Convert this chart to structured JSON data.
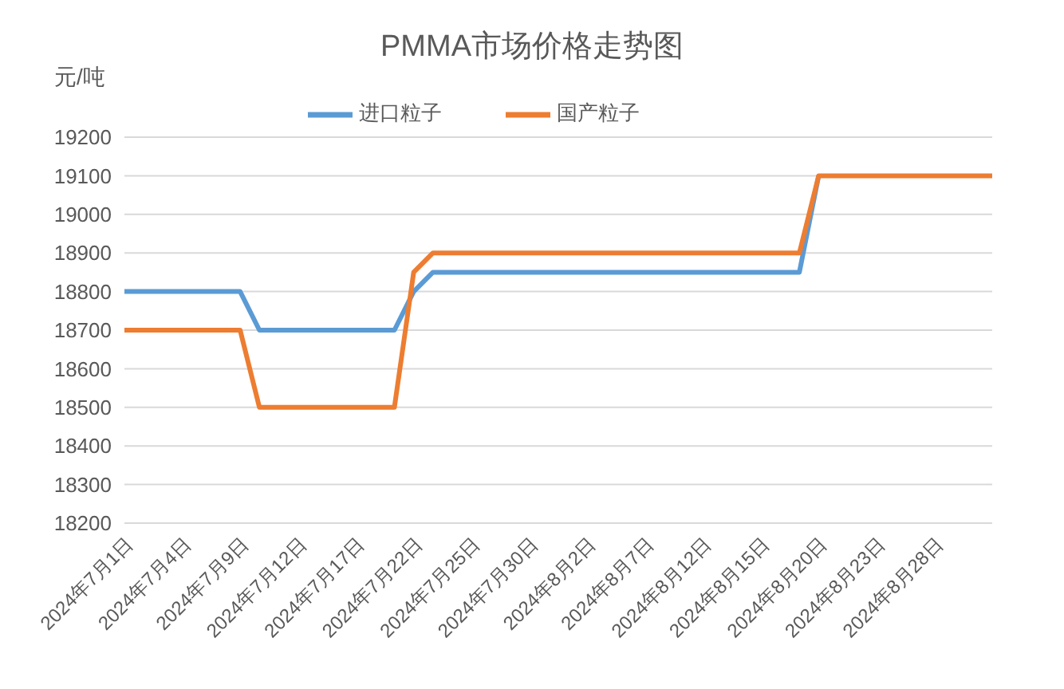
{
  "chart_data": {
    "type": "line",
    "title": "PMMA市场价格走势图",
    "ylabel": "元/吨",
    "categories": [
      "2024年7月1日",
      null,
      null,
      "2024年7月4日",
      null,
      null,
      "2024年7月9日",
      null,
      null,
      "2024年7月12日",
      null,
      null,
      "2024年7月17日",
      null,
      null,
      "2024年7月22日",
      null,
      null,
      "2024年7月25日",
      null,
      null,
      "2024年7月30日",
      null,
      null,
      "2024年8月2日",
      null,
      null,
      "2024年8月7日",
      null,
      null,
      "2024年8月12日",
      null,
      null,
      "2024年8月15日",
      null,
      null,
      "2024年8月20日",
      null,
      null,
      "2024年8月23日",
      null,
      null,
      "2024年8月28日",
      null,
      null,
      null
    ],
    "series": [
      {
        "name": "进口粒子",
        "color": "#5b9bd5",
        "values": [
          18800,
          18800,
          18800,
          18800,
          18800,
          18800,
          18800,
          18700,
          18700,
          18700,
          18700,
          18700,
          18700,
          18700,
          18700,
          18800,
          18850,
          18850,
          18850,
          18850,
          18850,
          18850,
          18850,
          18850,
          18850,
          18850,
          18850,
          18850,
          18850,
          18850,
          18850,
          18850,
          18850,
          18850,
          18850,
          18850,
          19100,
          null,
          null,
          null,
          null,
          null,
          null,
          null,
          null,
          null
        ]
      },
      {
        "name": "国产粒子",
        "color": "#ed7d31",
        "values": [
          18700,
          18700,
          18700,
          18700,
          18700,
          18700,
          18700,
          18500,
          18500,
          18500,
          18500,
          18500,
          18500,
          18500,
          18500,
          18850,
          18900,
          18900,
          18900,
          18900,
          18900,
          18900,
          18900,
          18900,
          18900,
          18900,
          18900,
          18900,
          18900,
          18900,
          18900,
          18900,
          18900,
          18900,
          18900,
          18900,
          19100,
          19100,
          19100,
          19100,
          19100,
          19100,
          19100,
          19100,
          19100,
          19100
        ]
      }
    ],
    "ylim": [
      18200,
      19200
    ],
    "yticks": [
      18200,
      18300,
      18400,
      18500,
      18600,
      18700,
      18800,
      18900,
      19000,
      19100,
      19200
    ],
    "grid": "y",
    "legend": "top",
    "marker": "none",
    "line_style": "solid"
  }
}
